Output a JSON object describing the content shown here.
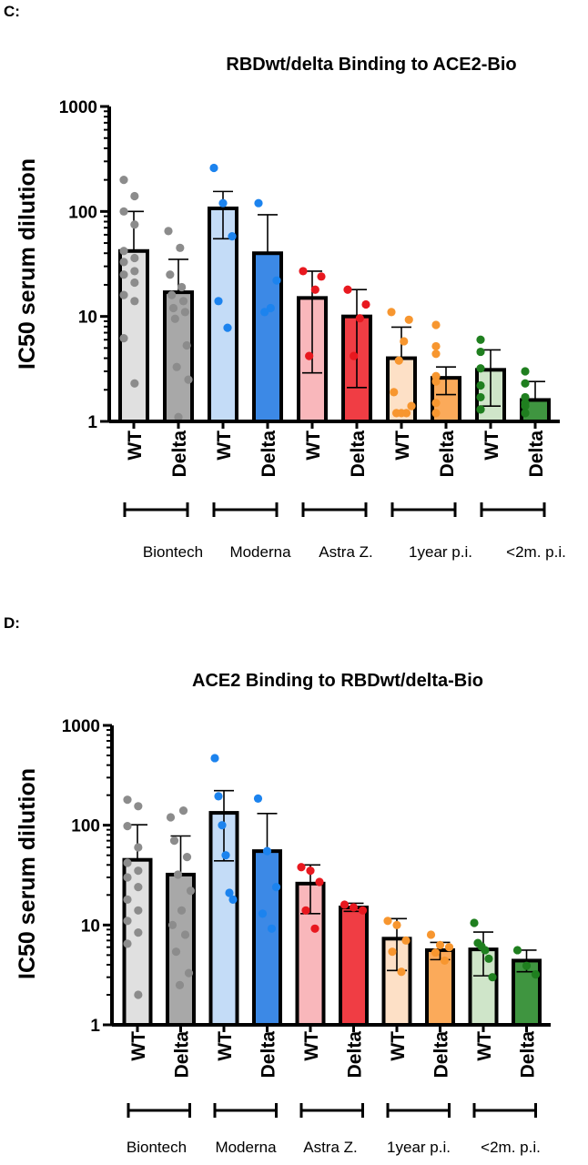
{
  "chart_data": [
    {
      "panel": "C:",
      "type": "bar",
      "title": "RBDwt/delta Binding to ACE2-Bio",
      "ylabel": "IC50 serum dilution",
      "xlabel": "",
      "yscale": "log",
      "ylim": [
        1,
        1000
      ],
      "yticks": [
        "1",
        "10",
        "100",
        "1000"
      ],
      "grid": false,
      "categories": [
        "WT",
        "Delta",
        "WT",
        "Delta",
        "WT",
        "Delta",
        "WT",
        "Delta",
        "WT",
        "Delta"
      ],
      "groups": [
        "Biontech",
        "Moderna",
        "Astra Z.",
        "1year p.i.",
        "<2m. p.i."
      ],
      "values": [
        42,
        17,
        107,
        40,
        15,
        10,
        4,
        2.6,
        3.1,
        1.6
      ],
      "error_upper": [
        100,
        35,
        155,
        93,
        27,
        18,
        7.9,
        3.3,
        4.8,
        2.4
      ],
      "error_lower": [
        0,
        0,
        55,
        0,
        2.9,
        2.1,
        0,
        1.8,
        1.4,
        0
      ],
      "points": [
        [
          200,
          140,
          100,
          75,
          42,
          36,
          33,
          27,
          25,
          21,
          16,
          14,
          6.2,
          2.3
        ],
        [
          65,
          45,
          25,
          19,
          16,
          14,
          12,
          11,
          9.5,
          5.3,
          3.3,
          2.5,
          1.1
        ],
        [
          260,
          120,
          58,
          14,
          7.8
        ],
        [
          120,
          22,
          12,
          11
        ],
        [
          27,
          24,
          18,
          4.2
        ],
        [
          18,
          13,
          9.6,
          4.2
        ],
        [
          11,
          9.3,
          5.8,
          3.8,
          1.9,
          1.4,
          1.2,
          1.2,
          1.2
        ],
        [
          8.3,
          5.2,
          4.4,
          2.7,
          2.4,
          1.5,
          1.2
        ],
        [
          6,
          4.6,
          3.2,
          2.2,
          1.7,
          1.3,
          1.3
        ],
        [
          3,
          2.3,
          1.7,
          1.5,
          1.4,
          1.2,
          1.2
        ]
      ],
      "colors": [
        "#e0e0e0",
        "#a8a8a8",
        "#c4dcf7",
        "#3c89e6",
        "#f9b7bb",
        "#f03d44",
        "#fde0c6",
        "#fbaa5a",
        "#cfe5c9",
        "#3f9540"
      ],
      "point_colors": [
        "#8c8c8c",
        "#8c8c8c",
        "#1c83ee",
        "#1c83ee",
        "#e8181f",
        "#e8181f",
        "#f7962f",
        "#f7962f",
        "#1f7f1f",
        "#1f7f1f"
      ]
    },
    {
      "panel": "D:",
      "type": "bar",
      "title": "ACE2 Binding to RBDwt/delta-Bio",
      "ylabel": "IC50 serum dilution",
      "xlabel": "",
      "yscale": "log",
      "ylim": [
        1,
        1000
      ],
      "yticks": [
        "1",
        "10",
        "100",
        "1000"
      ],
      "grid": false,
      "categories": [
        "WT",
        "Delta",
        "WT",
        "Delta",
        "WT",
        "Delta",
        "WT",
        "Delta",
        "WT",
        "Delta"
      ],
      "groups": [
        "Biontech",
        "Moderna",
        "Astra Z.",
        "1year p.i.",
        "<2m. p.i."
      ],
      "values": [
        45,
        32,
        133,
        55,
        26,
        15,
        7.3,
        5.6,
        5.7,
        4.4
      ],
      "error_upper": [
        101,
        78,
        222,
        131,
        40,
        16.5,
        11.6,
        6.7,
        8.5,
        5.6
      ],
      "error_lower": [
        0,
        0,
        44,
        0,
        13,
        13.7,
        3.5,
        4.5,
        3.1,
        3.4
      ],
      "points": [
        [
          180,
          155,
          98,
          60,
          42,
          35,
          30,
          24,
          18,
          14,
          11,
          8.4,
          6.5,
          2
        ],
        [
          120,
          140,
          70,
          48,
          32,
          22,
          14,
          10,
          8,
          5.4,
          3.3,
          2.5
        ],
        [
          470,
          195,
          100,
          50,
          21,
          18
        ],
        [
          185,
          55,
          24,
          13,
          9.2
        ],
        [
          38,
          35,
          27,
          14,
          9.2
        ],
        [
          16,
          15,
          14
        ],
        [
          11,
          10,
          7,
          5.4,
          3.4
        ],
        [
          8,
          6.3,
          6,
          5.3,
          4.4
        ],
        [
          10.5,
          6.6,
          6.1,
          5.6,
          4.6,
          3
        ],
        [
          5.6,
          3.9,
          3.2
        ]
      ],
      "colors": [
        "#e0e0e0",
        "#a8a8a8",
        "#c4dcf7",
        "#3c89e6",
        "#f9b7bb",
        "#f03d44",
        "#fde0c6",
        "#fbaa5a",
        "#cfe5c9",
        "#3f9540"
      ],
      "point_colors": [
        "#8c8c8c",
        "#8c8c8c",
        "#1c83ee",
        "#1c83ee",
        "#e8181f",
        "#e8181f",
        "#f7962f",
        "#f7962f",
        "#1f7f1f",
        "#1f7f1f"
      ]
    }
  ]
}
